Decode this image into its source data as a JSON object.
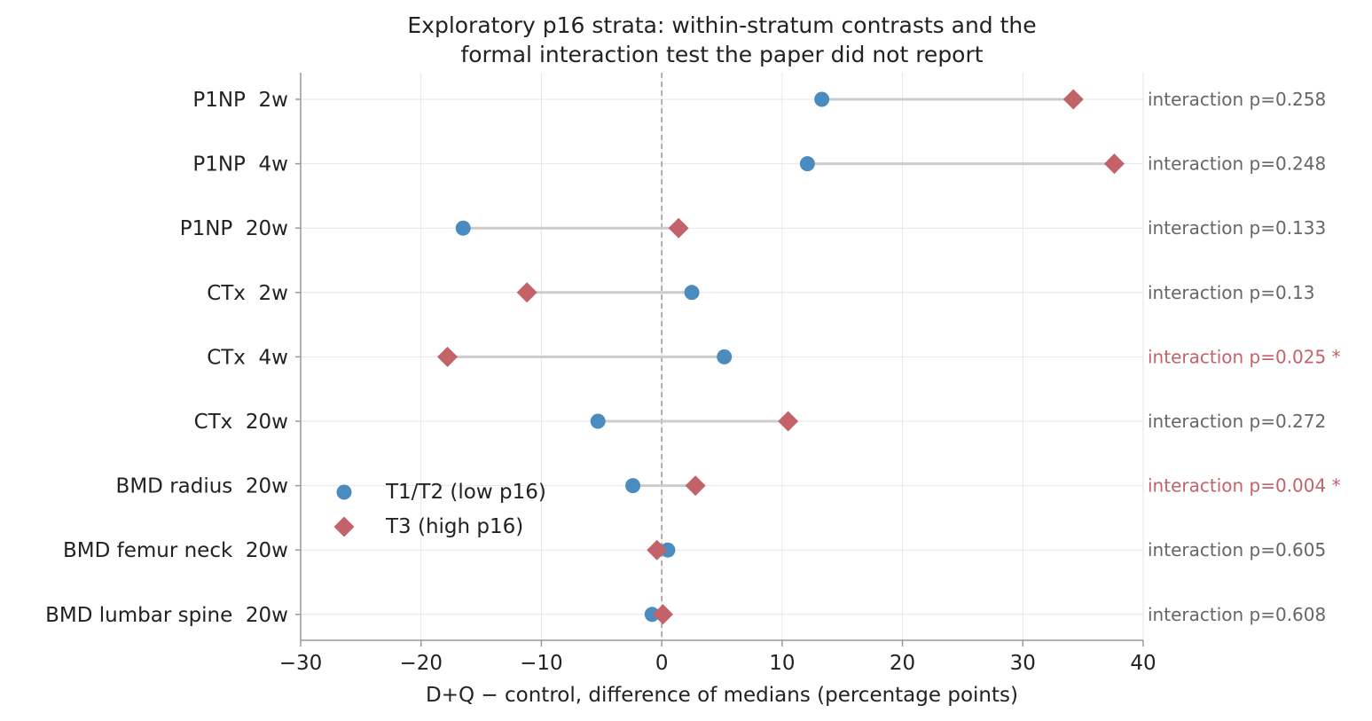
{
  "chart_data": {
    "type": "dot",
    "title_lines": [
      "Exploratory p16 strata: within-stratum contrasts and the",
      "formal interaction test the paper did not report"
    ],
    "xlabel": "D+Q − control, difference of medians (percentage points)",
    "ylabel": "",
    "xlim": [
      -30,
      40
    ],
    "xticks": [
      -30,
      -20,
      -10,
      0,
      10,
      20,
      30,
      40
    ],
    "xtick_labels": [
      "−30",
      "−20",
      "−10",
      "0",
      "10",
      "20",
      "30",
      "40"
    ],
    "grid": true,
    "reference_line_x": 0,
    "legend_position": "lower-left",
    "categories": [
      "P1NP  2w",
      "P1NP  4w",
      "P1NP  20w",
      "CTx  2w",
      "CTx  4w",
      "CTx  20w",
      "BMD radius  20w",
      "BMD femur neck  20w",
      "BMD lumbar spine  20w"
    ],
    "series": [
      {
        "name": "T1/T2 (low p16)",
        "marker": "circle",
        "color": "#4a8cc0",
        "values": [
          13.3,
          12.1,
          -16.5,
          2.5,
          5.2,
          -5.3,
          -2.4,
          0.5,
          -0.8
        ]
      },
      {
        "name": "T3 (high p16)",
        "marker": "diamond",
        "color": "#c4626a",
        "values": [
          34.2,
          37.6,
          1.4,
          -11.2,
          -17.8,
          10.5,
          2.8,
          -0.4,
          0.1
        ]
      }
    ],
    "annotations": [
      {
        "text": "interaction p=0.258",
        "significant": false
      },
      {
        "text": "interaction p=0.248",
        "significant": false
      },
      {
        "text": "interaction p=0.133",
        "significant": false
      },
      {
        "text": "interaction p=0.13",
        "significant": false
      },
      {
        "text": "interaction p=0.025 *",
        "significant": true
      },
      {
        "text": "interaction p=0.272",
        "significant": false
      },
      {
        "text": "interaction p=0.004 *",
        "significant": true
      },
      {
        "text": "interaction p=0.605",
        "significant": false
      },
      {
        "text": "interaction p=0.608",
        "significant": false
      }
    ],
    "colors": {
      "annotation_default": "#666666",
      "annotation_significant": "#c4626a",
      "connector": "#cccccc",
      "grid": "#e6e6e6",
      "axis": "#999999",
      "reference_line": "#999999"
    }
  }
}
